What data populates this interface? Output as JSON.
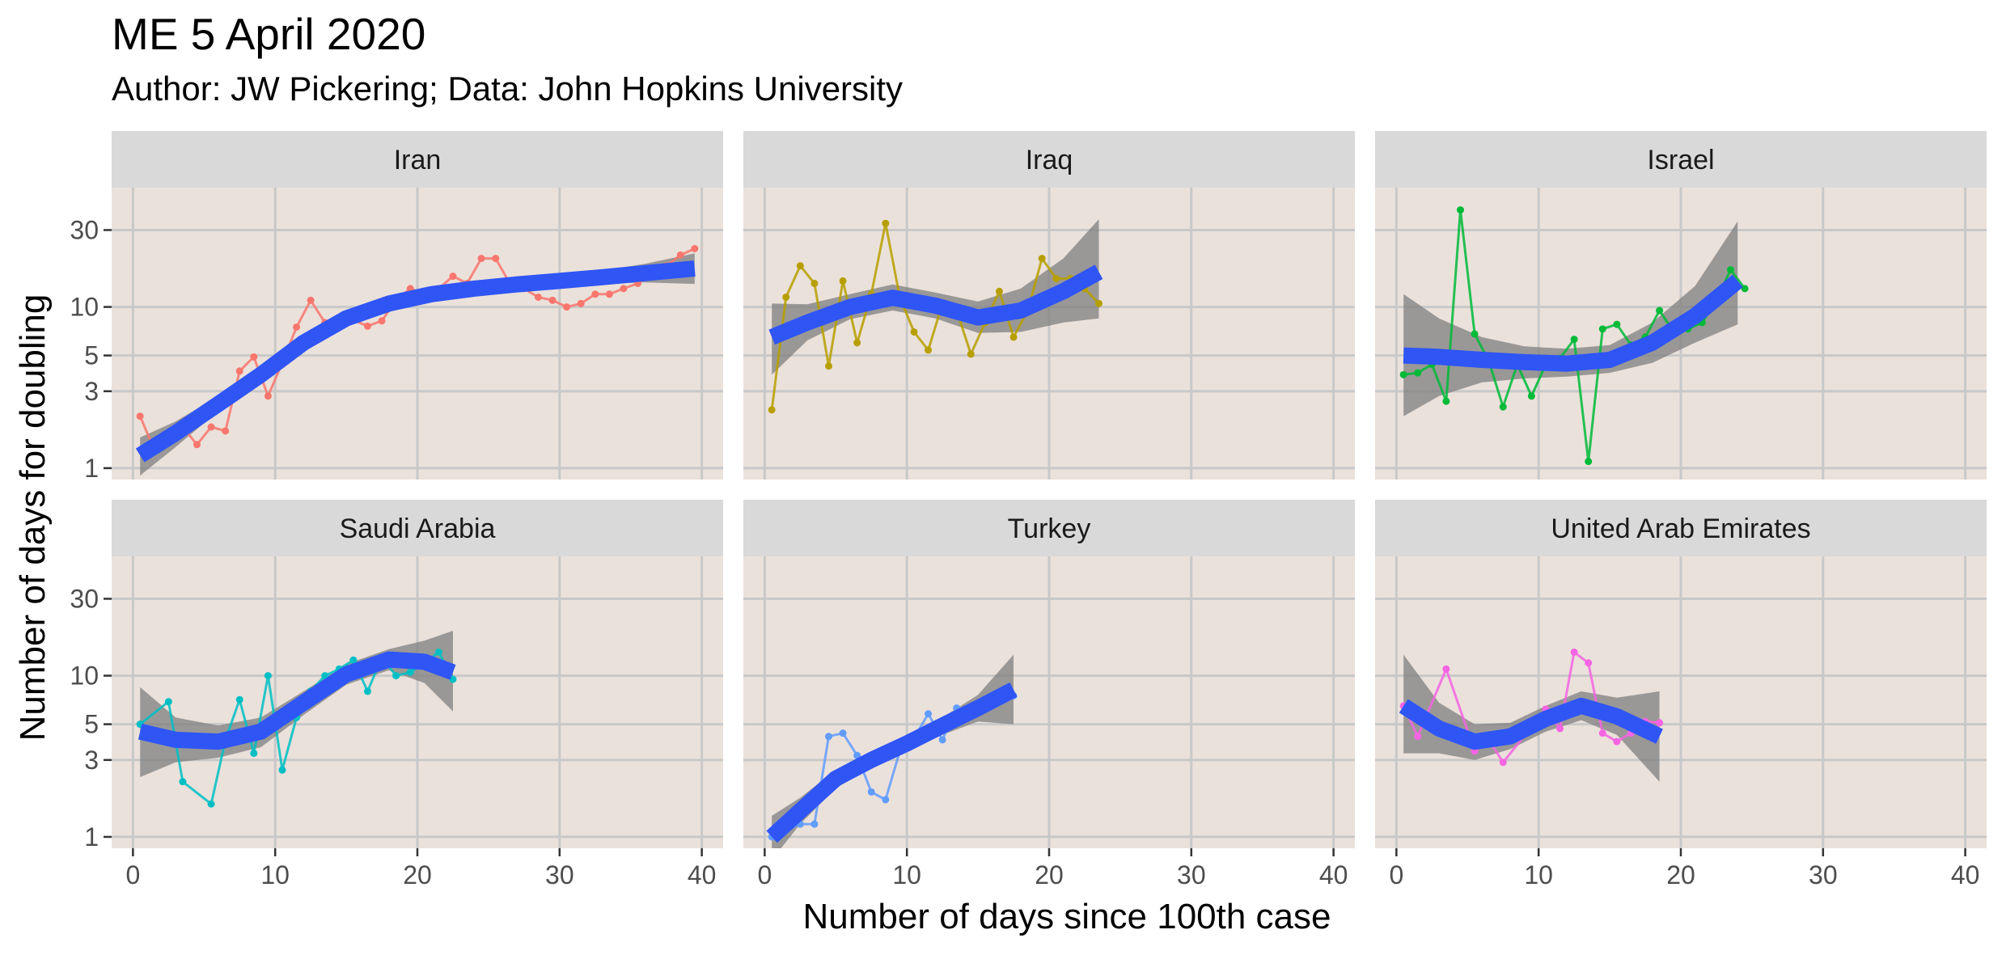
{
  "title": "ME 5 April 2020",
  "subtitle": "Author: JW Pickering; Data: John Hopkins University",
  "chart_data": {
    "type": "line",
    "xlabel": "Number of days since 100th case",
    "ylabel": "Number of days for doubling",
    "y_scale": "log",
    "xlim": [
      -1.5,
      41.5
    ],
    "ylim": [
      0.85,
      55
    ],
    "x_ticks": [
      0,
      10,
      20,
      30,
      40
    ],
    "y_ticks": [
      1,
      3,
      5,
      10,
      30
    ],
    "grid": true,
    "facets": [
      {
        "name": "Iran",
        "color": "#F8766D",
        "x": [
          0.5,
          1.5,
          2.5,
          3.5,
          4.5,
          5.5,
          6.5,
          7.5,
          8.5,
          9.5,
          10.5,
          11.5,
          12.5,
          13.5,
          14.5,
          15.5,
          16.5,
          17.5,
          18.5,
          19.5,
          20.5,
          21.5,
          22.5,
          23.5,
          24.5,
          25.5,
          26.5,
          27.5,
          28.5,
          29.5,
          30.5,
          31.5,
          32.5,
          33.5,
          34.5,
          35.5,
          36.5,
          37.5,
          38.5,
          39.5
        ],
        "y": [
          2.1,
          1.3,
          1.6,
          1.8,
          1.4,
          1.8,
          1.7,
          4.0,
          4.9,
          2.8,
          4.5,
          7.5,
          11,
          8,
          8.2,
          8.3,
          7.6,
          8.2,
          11,
          13,
          12,
          13,
          15.5,
          14,
          20,
          20,
          14,
          13,
          11.5,
          11,
          10,
          10.5,
          12,
          12,
          13,
          14,
          16,
          18,
          21,
          23
        ],
        "smooth_x": [
          0.5,
          3,
          6,
          9,
          12,
          15,
          18,
          21,
          24,
          27,
          30,
          33,
          36,
          39.5
        ],
        "smooth_y": [
          1.2,
          1.65,
          2.5,
          3.8,
          6.0,
          8.5,
          10.5,
          12.0,
          13.0,
          13.8,
          14.5,
          15.3,
          16.2,
          17.3
        ],
        "band_upper": [
          1.55,
          1.95,
          2.8,
          4.2,
          6.5,
          9.2,
          11.3,
          12.9,
          13.9,
          14.8,
          15.6,
          16.8,
          18.5,
          21.5
        ],
        "band_lower": [
          0.9,
          1.35,
          2.25,
          3.4,
          5.5,
          7.8,
          9.7,
          11.1,
          12.1,
          12.8,
          13.3,
          13.9,
          14.2,
          13.9
        ]
      },
      {
        "name": "Iraq",
        "color": "#B79F00",
        "x": [
          0.5,
          1.5,
          2.5,
          3.5,
          4.5,
          5.5,
          6.5,
          7.5,
          8.5,
          9.5,
          10.5,
          11.5,
          12.5,
          13.5,
          14.5,
          15.5,
          16.5,
          17.5,
          18.5,
          19.5,
          20.5,
          21.5,
          22.5,
          23.5
        ],
        "y": [
          2.3,
          11.5,
          18,
          14,
          4.3,
          14.5,
          6,
          12,
          33,
          11.5,
          7,
          5.4,
          10.5,
          9.5,
          5.1,
          8,
          12.5,
          6.5,
          9.5,
          20,
          15,
          15,
          13,
          10.5
        ],
        "smooth_x": [
          0.5,
          3,
          6,
          9,
          12,
          15,
          18,
          21,
          23.5
        ],
        "smooth_y": [
          6.5,
          8.0,
          10.0,
          11.4,
          10.2,
          8.6,
          9.5,
          12.5,
          16.5
        ],
        "band_upper": [
          10.5,
          10.4,
          12.0,
          13.8,
          12.3,
          10.8,
          13.0,
          20.0,
          35.0
        ],
        "band_lower": [
          3.8,
          6.2,
          8.4,
          9.5,
          8.5,
          6.9,
          7.0,
          8.0,
          8.5
        ]
      },
      {
        "name": "Israel",
        "color": "#00BA38",
        "x": [
          0.5,
          1.5,
          2.5,
          3.5,
          4.5,
          5.5,
          6.5,
          7.5,
          8.5,
          9.5,
          10.5,
          11.5,
          12.5,
          13.5,
          14.5,
          15.5,
          16.5,
          17.5,
          18.5,
          19.5,
          20.5,
          21.5,
          22.5,
          23.5,
          24.5
        ],
        "y": [
          3.8,
          3.9,
          4.4,
          2.6,
          40,
          6.8,
          4.6,
          2.4,
          4.4,
          2.8,
          4.4,
          4.8,
          6.3,
          1.1,
          7.3,
          7.8,
          5.8,
          6.5,
          9.5,
          7,
          7.3,
          8,
          11,
          17,
          13
        ],
        "smooth_x": [
          0.5,
          3,
          6,
          9,
          12,
          15,
          18,
          21,
          24
        ],
        "smooth_y": [
          5.0,
          4.9,
          4.7,
          4.55,
          4.45,
          4.7,
          6.0,
          8.8,
          14.5
        ],
        "band_upper": [
          12.0,
          8.5,
          6.5,
          5.7,
          5.5,
          5.8,
          8.0,
          13.5,
          34.0
        ],
        "band_lower": [
          2.1,
          2.8,
          3.4,
          3.6,
          3.7,
          3.9,
          4.5,
          6.0,
          7.8
        ]
      },
      {
        "name": "Saudi Arabia",
        "color": "#00BFC4",
        "x": [
          0.5,
          2.5,
          3.5,
          5.5,
          6.5,
          7.5,
          8.5,
          9.5,
          10.5,
          11.5,
          12.5,
          13.5,
          14.5,
          15.5,
          16.5,
          17.5,
          18.5,
          19.5,
          20.5,
          21.5,
          22.5
        ],
        "y": [
          5,
          6.9,
          2.2,
          1.6,
          4,
          7.1,
          3.3,
          10,
          2.6,
          5.5,
          8,
          10,
          11,
          12.5,
          8,
          13,
          10,
          10.5,
          12,
          14,
          9.5
        ],
        "smooth_x": [
          0.5,
          3,
          6,
          9,
          12,
          15,
          18,
          20.5,
          22.5
        ],
        "smooth_y": [
          4.5,
          4.0,
          3.9,
          4.5,
          6.8,
          10.2,
          12.6,
          12.2,
          10.5
        ],
        "band_upper": [
          8.5,
          5.5,
          4.9,
          5.5,
          8.0,
          11.8,
          14.6,
          16.5,
          19.0
        ],
        "band_lower": [
          2.35,
          2.9,
          3.1,
          3.6,
          5.7,
          8.8,
          10.8,
          9.0,
          6.0
        ]
      },
      {
        "name": "Turkey",
        "color": "#619CFF",
        "x": [
          0.5,
          1.5,
          2.5,
          3.5,
          4.5,
          5.5,
          6.5,
          7.5,
          8.5,
          9.5,
          10.5,
          11.5,
          12.5,
          13.5,
          14.5,
          15.5,
          16.5,
          17.5
        ],
        "y": [
          1.0,
          1.1,
          1.2,
          1.2,
          4.2,
          4.4,
          3.2,
          1.9,
          1.7,
          3.4,
          4.1,
          5.8,
          4,
          6.3,
          6.2,
          6.5,
          7.2,
          7.5
        ],
        "smooth_x": [
          0.5,
          2.5,
          5,
          7.5,
          10,
          12.5,
          15,
          17.5
        ],
        "smooth_y": [
          1.0,
          1.45,
          2.3,
          3.0,
          3.8,
          4.9,
          6.3,
          8.2
        ],
        "band_upper": [
          1.35,
          1.75,
          2.6,
          3.3,
          4.2,
          5.5,
          7.6,
          13.5
        ],
        "band_lower": [
          0.72,
          1.2,
          2.0,
          2.7,
          3.4,
          4.3,
          5.2,
          5.0
        ]
      },
      {
        "name": "United Arab Emirates",
        "color": "#F564E3",
        "x": [
          0.5,
          1.5,
          3.5,
          5.5,
          6.5,
          7.5,
          10.5,
          11.5,
          12.5,
          13.5,
          14.5,
          15.5,
          16.5,
          17.5,
          18.5
        ],
        "y": [
          6.5,
          4.2,
          11,
          3.4,
          4,
          2.9,
          6.2,
          4.7,
          14,
          12,
          4.4,
          3.9,
          4.4,
          5.2,
          5.1
        ],
        "smooth_x": [
          0.5,
          3,
          5.5,
          8,
          10.5,
          13,
          15.5,
          18.5
        ],
        "smooth_y": [
          6.5,
          4.7,
          3.9,
          4.2,
          5.4,
          6.5,
          5.6,
          4.2
        ],
        "band_upper": [
          13.5,
          6.8,
          5.0,
          5.1,
          6.5,
          8.0,
          7.3,
          8.0
        ],
        "band_lower": [
          3.3,
          3.3,
          3.0,
          3.5,
          4.5,
          5.3,
          4.3,
          2.2
        ]
      }
    ]
  }
}
